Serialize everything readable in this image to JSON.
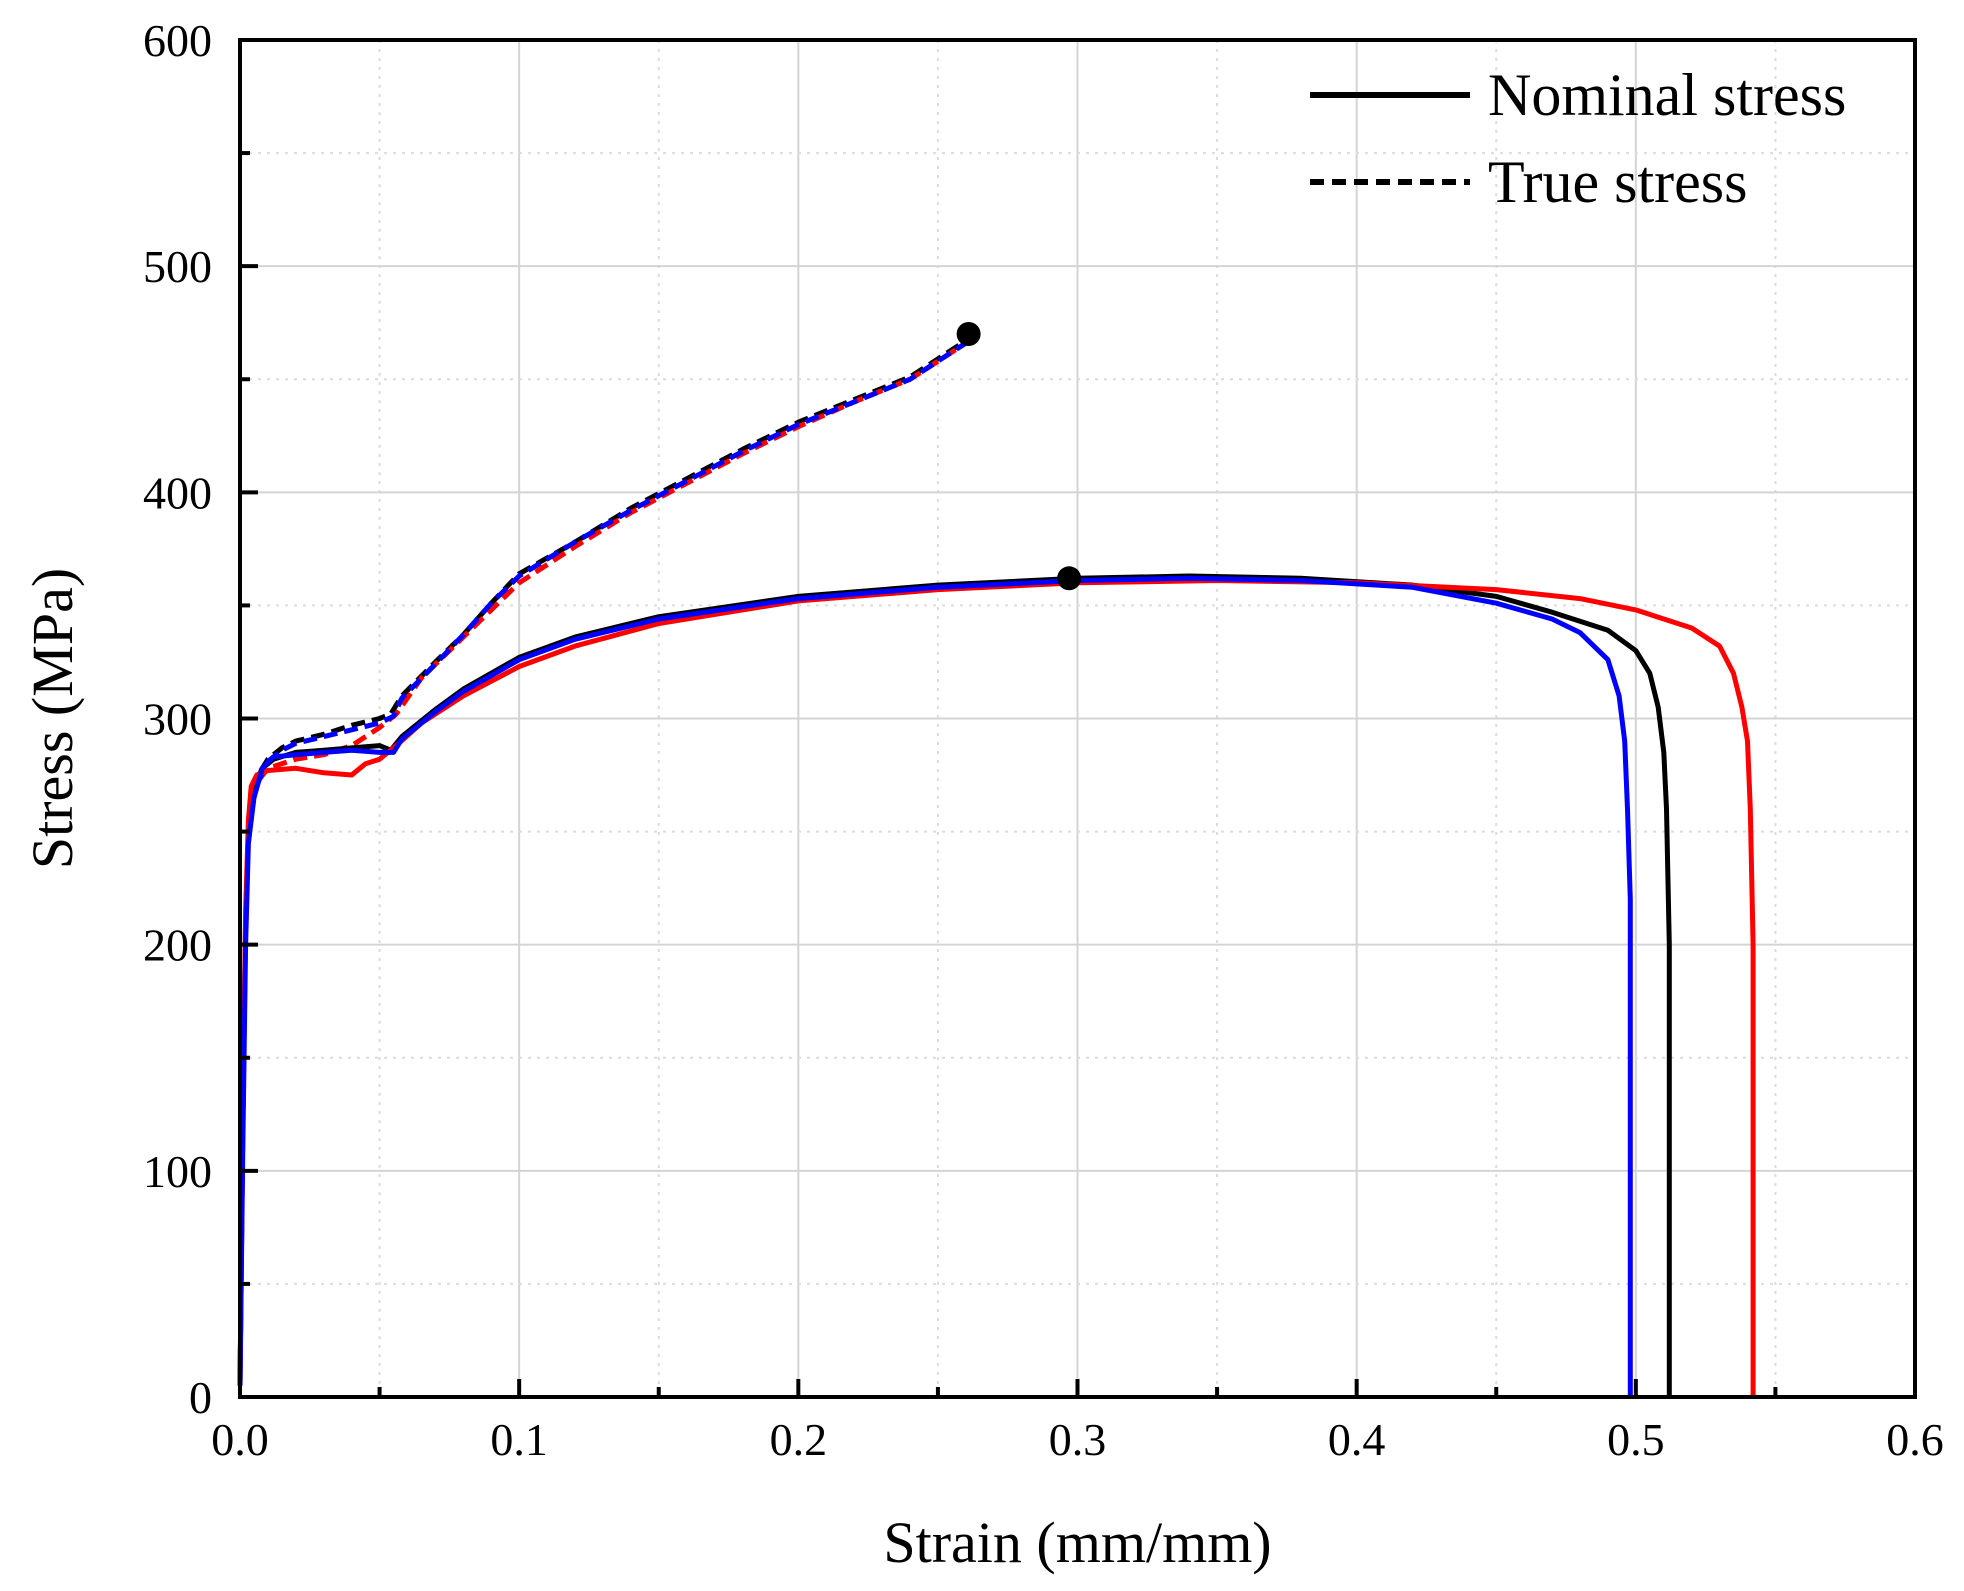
{
  "chart_data": {
    "type": "line",
    "title": "",
    "xlabel": "Strain (mm/mm)",
    "ylabel": "Stress (MPa)",
    "xlim": [
      0.0,
      0.6
    ],
    "ylim": [
      0,
      600
    ],
    "x_major_step": 0.1,
    "y_major_step": 100,
    "x_tick_labels": [
      "0.0",
      "0.1",
      "0.2",
      "0.3",
      "0.4",
      "0.5",
      "0.6"
    ],
    "y_tick_labels": [
      "0",
      "100",
      "200",
      "300",
      "400",
      "500",
      "600"
    ],
    "grid": true,
    "legend": {
      "placement": "top-right",
      "entries": [
        {
          "label": "Nominal stress",
          "style": "solid",
          "color": "#000000"
        },
        {
          "label": "True stress",
          "style": "dashed",
          "color": "#000000"
        }
      ]
    },
    "series": [
      {
        "name": "Nominal stress (black)",
        "style": "solid",
        "color": "#000000",
        "points": [
          [
            0.0,
            5
          ],
          [
            0.001,
            120
          ],
          [
            0.002,
            210
          ],
          [
            0.003,
            250
          ],
          [
            0.005,
            270
          ],
          [
            0.008,
            278
          ],
          [
            0.012,
            282
          ],
          [
            0.02,
            285
          ],
          [
            0.03,
            286
          ],
          [
            0.04,
            287
          ],
          [
            0.05,
            288
          ],
          [
            0.054,
            286
          ],
          [
            0.058,
            292
          ],
          [
            0.07,
            304
          ],
          [
            0.08,
            313
          ],
          [
            0.1,
            327
          ],
          [
            0.12,
            336
          ],
          [
            0.15,
            345
          ],
          [
            0.2,
            354
          ],
          [
            0.25,
            359
          ],
          [
            0.3,
            362
          ],
          [
            0.34,
            363
          ],
          [
            0.38,
            362
          ],
          [
            0.42,
            359
          ],
          [
            0.45,
            354
          ],
          [
            0.47,
            347
          ],
          [
            0.49,
            339
          ],
          [
            0.5,
            330
          ],
          [
            0.505,
            320
          ],
          [
            0.508,
            305
          ],
          [
            0.51,
            285
          ],
          [
            0.511,
            260
          ],
          [
            0.512,
            200
          ],
          [
            0.512,
            0
          ]
        ]
      },
      {
        "name": "Nominal stress (red)",
        "style": "solid",
        "color": "#ff0000",
        "points": [
          [
            0.0,
            5
          ],
          [
            0.001,
            120
          ],
          [
            0.002,
            215
          ],
          [
            0.003,
            255
          ],
          [
            0.004,
            270
          ],
          [
            0.006,
            275
          ],
          [
            0.01,
            277
          ],
          [
            0.02,
            278
          ],
          [
            0.03,
            276
          ],
          [
            0.04,
            275
          ],
          [
            0.045,
            280
          ],
          [
            0.05,
            282
          ],
          [
            0.056,
            288
          ],
          [
            0.065,
            298
          ],
          [
            0.08,
            310
          ],
          [
            0.1,
            323
          ],
          [
            0.12,
            332
          ],
          [
            0.15,
            342
          ],
          [
            0.2,
            352
          ],
          [
            0.25,
            357
          ],
          [
            0.3,
            360
          ],
          [
            0.35,
            361
          ],
          [
            0.4,
            360
          ],
          [
            0.45,
            357
          ],
          [
            0.48,
            353
          ],
          [
            0.5,
            348
          ],
          [
            0.52,
            340
          ],
          [
            0.53,
            332
          ],
          [
            0.535,
            320
          ],
          [
            0.538,
            305
          ],
          [
            0.54,
            290
          ],
          [
            0.541,
            260
          ],
          [
            0.542,
            200
          ],
          [
            0.542,
            0
          ]
        ]
      },
      {
        "name": "Nominal stress (blue)",
        "style": "solid",
        "color": "#0000ff",
        "points": [
          [
            0.0,
            5
          ],
          [
            0.001,
            110
          ],
          [
            0.002,
            200
          ],
          [
            0.003,
            245
          ],
          [
            0.005,
            265
          ],
          [
            0.008,
            278
          ],
          [
            0.012,
            283
          ],
          [
            0.02,
            284
          ],
          [
            0.03,
            285
          ],
          [
            0.04,
            286
          ],
          [
            0.05,
            285
          ],
          [
            0.055,
            285
          ],
          [
            0.058,
            291
          ],
          [
            0.07,
            303
          ],
          [
            0.08,
            312
          ],
          [
            0.1,
            326
          ],
          [
            0.12,
            335
          ],
          [
            0.15,
            344
          ],
          [
            0.2,
            353
          ],
          [
            0.25,
            358
          ],
          [
            0.3,
            361
          ],
          [
            0.34,
            362
          ],
          [
            0.38,
            361
          ],
          [
            0.42,
            358
          ],
          [
            0.45,
            351
          ],
          [
            0.47,
            344
          ],
          [
            0.48,
            338
          ],
          [
            0.49,
            326
          ],
          [
            0.494,
            310
          ],
          [
            0.496,
            290
          ],
          [
            0.497,
            260
          ],
          [
            0.498,
            220
          ],
          [
            0.498,
            0
          ]
        ]
      },
      {
        "name": "True stress (black)",
        "style": "dashed",
        "color": "#000000",
        "points": [
          [
            0.003,
            250
          ],
          [
            0.005,
            272
          ],
          [
            0.01,
            282
          ],
          [
            0.015,
            287
          ],
          [
            0.02,
            290
          ],
          [
            0.03,
            293
          ],
          [
            0.04,
            297
          ],
          [
            0.05,
            300
          ],
          [
            0.054,
            302
          ],
          [
            0.058,
            310
          ],
          [
            0.07,
            325
          ],
          [
            0.08,
            337
          ],
          [
            0.09,
            351
          ],
          [
            0.1,
            364
          ],
          [
            0.12,
            378
          ],
          [
            0.14,
            393
          ],
          [
            0.16,
            406
          ],
          [
            0.18,
            419
          ],
          [
            0.2,
            431
          ],
          [
            0.22,
            441
          ],
          [
            0.24,
            451
          ],
          [
            0.26,
            467
          ]
        ]
      },
      {
        "name": "True stress (red)",
        "style": "dashed",
        "color": "#ff0000",
        "points": [
          [
            0.003,
            255
          ],
          [
            0.005,
            270
          ],
          [
            0.01,
            278
          ],
          [
            0.02,
            282
          ],
          [
            0.03,
            284
          ],
          [
            0.04,
            288
          ],
          [
            0.045,
            292
          ],
          [
            0.05,
            296
          ],
          [
            0.056,
            302
          ],
          [
            0.065,
            318
          ],
          [
            0.08,
            336
          ],
          [
            0.09,
            348
          ],
          [
            0.1,
            360
          ],
          [
            0.12,
            376
          ],
          [
            0.14,
            391
          ],
          [
            0.16,
            404
          ],
          [
            0.18,
            417
          ],
          [
            0.2,
            429
          ],
          [
            0.22,
            440
          ],
          [
            0.24,
            450
          ],
          [
            0.26,
            466
          ]
        ]
      },
      {
        "name": "True stress (blue)",
        "style": "dashed",
        "color": "#0000ff",
        "points": [
          [
            0.003,
            245
          ],
          [
            0.005,
            268
          ],
          [
            0.01,
            281
          ],
          [
            0.015,
            286
          ],
          [
            0.02,
            289
          ],
          [
            0.03,
            292
          ],
          [
            0.04,
            295
          ],
          [
            0.05,
            298
          ],
          [
            0.055,
            301
          ],
          [
            0.058,
            309
          ],
          [
            0.07,
            324
          ],
          [
            0.08,
            337
          ],
          [
            0.09,
            351
          ],
          [
            0.1,
            363
          ],
          [
            0.12,
            378
          ],
          [
            0.14,
            392
          ],
          [
            0.16,
            405
          ],
          [
            0.18,
            418
          ],
          [
            0.2,
            430
          ],
          [
            0.22,
            440
          ],
          [
            0.24,
            450
          ],
          [
            0.26,
            466
          ]
        ]
      }
    ],
    "markers": [
      {
        "name": "true-stress-end-marker",
        "x": 0.261,
        "y": 470,
        "color": "#000000"
      },
      {
        "name": "max-nominal-stress-marker",
        "x": 0.297,
        "y": 362,
        "color": "#000000"
      }
    ]
  }
}
